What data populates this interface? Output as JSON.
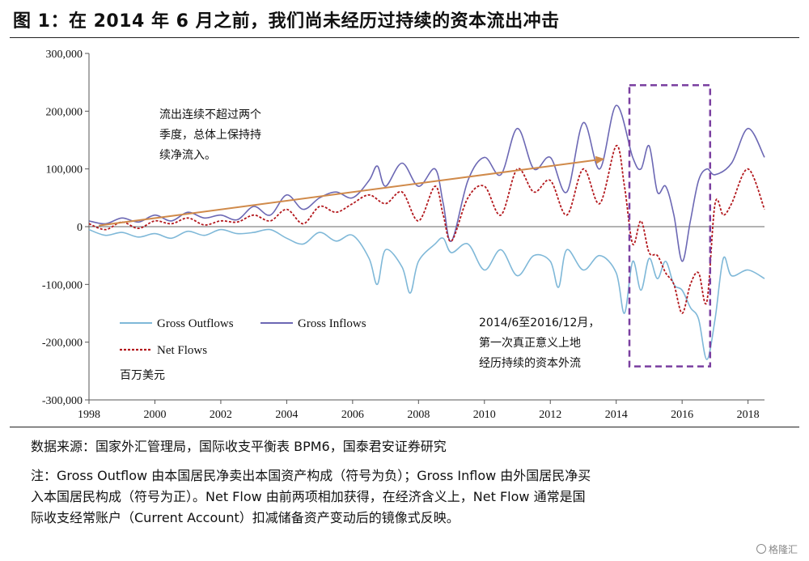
{
  "title": "图 1：在 2014 年 6 月之前，我们尚未经历过持续的资本流出冲击",
  "source": "数据来源：国家外汇管理局，国际收支平衡表 BPM6，国泰君安证券研究",
  "note": [
    "注：Gross Outflow 由本国居民净卖出本国资产构成（符号为负）；Gross Inflow 由外国居民净买",
    "入本国居民构成（符号为正）。Net Flow 由前两项相加获得，在经济含义上，Net Flow 通常是国",
    "际收支经常账户（Current Account）扣减储备资产变动后的镜像式反映。"
  ],
  "watermark": "格隆汇",
  "colors": {
    "outflows": "#7fb8d8",
    "inflows": "#6c68b4",
    "net": "#b3181d",
    "arrow": "#d08a4a",
    "box": "#7a3fa0"
  },
  "chart_data": {
    "type": "line",
    "ylim": [
      -300000,
      300000
    ],
    "xlim": [
      1998,
      2018.5
    ],
    "yticks": [
      -300000,
      -200000,
      -100000,
      0,
      100000,
      200000,
      300000
    ],
    "ytick_labels": [
      "-300,000",
      "-200,000",
      "-100,000",
      "0",
      "100,000",
      "200,000",
      "300,000"
    ],
    "xticks": [
      1998,
      2000,
      2002,
      2004,
      2006,
      2008,
      2010,
      2012,
      2014,
      2016,
      2018
    ],
    "xtick_labels": [
      "1998",
      "2000",
      "2002",
      "2004",
      "2006",
      "2008",
      "2010",
      "2012",
      "2014",
      "2016",
      "2018"
    ],
    "unit_label": "百万美元",
    "legend": [
      "Gross Outflows",
      "Gross Inflows",
      "Net Flows"
    ],
    "series": [
      {
        "name": "Gross Outflows",
        "x": [
          1998.0,
          1998.5,
          1999.0,
          1999.5,
          2000.0,
          2000.5,
          2001.0,
          2001.5,
          2002.0,
          2002.5,
          2003.0,
          2003.5,
          2004.0,
          2004.5,
          2005.0,
          2005.5,
          2006.0,
          2006.5,
          2006.75,
          2007.0,
          2007.5,
          2007.75,
          2008.0,
          2008.5,
          2008.75,
          2009.0,
          2009.5,
          2010.0,
          2010.5,
          2011.0,
          2011.5,
          2012.0,
          2012.25,
          2012.5,
          2013.0,
          2013.5,
          2014.0,
          2014.25,
          2014.5,
          2014.75,
          2015.0,
          2015.25,
          2015.5,
          2015.75,
          2016.0,
          2016.25,
          2016.5,
          2016.75,
          2017.0,
          2017.25,
          2017.5,
          2018.0,
          2018.5
        ],
        "values": [
          -5000,
          -15000,
          -10000,
          -18000,
          -12000,
          -20000,
          -8000,
          -15000,
          -5000,
          -12000,
          -10000,
          -5000,
          -20000,
          -30000,
          -10000,
          -25000,
          -15000,
          -55000,
          -100000,
          -40000,
          -70000,
          -115000,
          -60000,
          -30000,
          -20000,
          -45000,
          -30000,
          -75000,
          -40000,
          -85000,
          -50000,
          -60000,
          -105000,
          -40000,
          -75000,
          -50000,
          -80000,
          -150000,
          -60000,
          -110000,
          -55000,
          -90000,
          -60000,
          -100000,
          -110000,
          -140000,
          -160000,
          -230000,
          -160000,
          -55000,
          -85000,
          -75000,
          -90000
        ]
      },
      {
        "name": "Gross Inflows",
        "x": [
          1998.0,
          1998.5,
          1999.0,
          1999.5,
          2000.0,
          2000.5,
          2001.0,
          2001.5,
          2002.0,
          2002.5,
          2003.0,
          2003.5,
          2004.0,
          2004.5,
          2005.0,
          2005.5,
          2006.0,
          2006.5,
          2006.75,
          2007.0,
          2007.5,
          2008.0,
          2008.5,
          2008.75,
          2009.0,
          2009.5,
          2010.0,
          2010.5,
          2011.0,
          2011.5,
          2012.0,
          2012.5,
          2013.0,
          2013.5,
          2014.0,
          2014.5,
          2014.75,
          2015.0,
          2015.25,
          2015.5,
          2015.75,
          2016.0,
          2016.25,
          2016.5,
          2016.75,
          2017.0,
          2017.5,
          2018.0,
          2018.5
        ],
        "values": [
          10000,
          5000,
          15000,
          8000,
          20000,
          10000,
          25000,
          15000,
          20000,
          12000,
          35000,
          20000,
          55000,
          30000,
          50000,
          60000,
          50000,
          80000,
          105000,
          70000,
          110000,
          70000,
          100000,
          40000,
          -25000,
          80000,
          120000,
          90000,
          170000,
          100000,
          120000,
          60000,
          180000,
          100000,
          210000,
          120000,
          100000,
          140000,
          60000,
          70000,
          20000,
          -60000,
          10000,
          80000,
          100000,
          90000,
          110000,
          170000,
          120000
        ]
      },
      {
        "name": "Net Flows",
        "x": [
          1998.0,
          1998.5,
          1999.0,
          1999.5,
          2000.0,
          2000.5,
          2001.0,
          2001.5,
          2002.0,
          2002.5,
          2003.0,
          2003.5,
          2004.0,
          2004.5,
          2005.0,
          2005.5,
          2006.0,
          2006.5,
          2007.0,
          2007.5,
          2008.0,
          2008.5,
          2008.75,
          2009.0,
          2009.5,
          2010.0,
          2010.5,
          2011.0,
          2011.5,
          2012.0,
          2012.5,
          2013.0,
          2013.5,
          2014.0,
          2014.25,
          2014.5,
          2014.75,
          2015.0,
          2015.25,
          2015.5,
          2015.75,
          2016.0,
          2016.25,
          2016.5,
          2016.75,
          2017.0,
          2017.25,
          2017.5,
          2018.0,
          2018.5
        ],
        "values": [
          5000,
          -5000,
          8000,
          -3000,
          10000,
          5000,
          15000,
          3000,
          10000,
          8000,
          20000,
          10000,
          30000,
          5000,
          35000,
          25000,
          40000,
          55000,
          40000,
          60000,
          10000,
          70000,
          20000,
          -25000,
          50000,
          70000,
          20000,
          100000,
          60000,
          80000,
          20000,
          100000,
          40000,
          140000,
          70000,
          -30000,
          10000,
          -45000,
          -50000,
          -80000,
          -100000,
          -150000,
          -100000,
          -80000,
          -130000,
          40000,
          20000,
          40000,
          100000,
          30000
        ]
      }
    ],
    "annotations": [
      "流出连续不超过两个",
      "季度，总体上保持持",
      "续净流入。",
      "2014/6至2016/12月，",
      "第一次真正意义上地",
      "经历持续的资本外流"
    ]
  }
}
